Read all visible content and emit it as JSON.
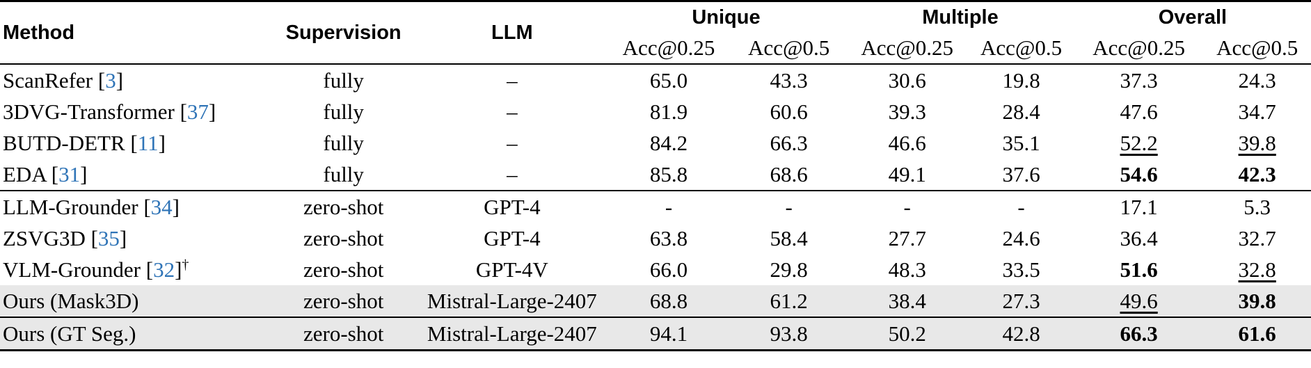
{
  "header": {
    "method": "Method",
    "supervision": "Supervision",
    "llm": "LLM",
    "groups": [
      "Unique",
      "Multiple",
      "Overall"
    ],
    "metrics": [
      "Acc@0.25",
      "Acc@0.5",
      "Acc@0.25",
      "Acc@0.5",
      "Acc@0.25",
      "Acc@0.5"
    ]
  },
  "rows": [
    {
      "name": "ScanRefer",
      "cite": "3",
      "dagger": "",
      "supervision": "fully",
      "llm": "–",
      "values": [
        "65.0",
        "43.3",
        "30.6",
        "19.8",
        "37.3",
        "24.3"
      ],
      "bold": [],
      "underline": [],
      "shade": false,
      "rule": false
    },
    {
      "name": "3DVG-Transformer",
      "cite": "37",
      "dagger": "",
      "supervision": "fully",
      "llm": "–",
      "values": [
        "81.9",
        "60.6",
        "39.3",
        "28.4",
        "47.6",
        "34.7"
      ],
      "bold": [],
      "underline": [],
      "shade": false,
      "rule": false
    },
    {
      "name": "BUTD-DETR",
      "cite": "11",
      "dagger": "",
      "supervision": "fully",
      "llm": "–",
      "values": [
        "84.2",
        "66.3",
        "46.6",
        "35.1",
        "52.2",
        "39.8"
      ],
      "bold": [],
      "underline": [
        4,
        5
      ],
      "shade": false,
      "rule": false
    },
    {
      "name": "EDA",
      "cite": "31",
      "dagger": "",
      "supervision": "fully",
      "llm": "–",
      "values": [
        "85.8",
        "68.6",
        "49.1",
        "37.6",
        "54.6",
        "42.3"
      ],
      "bold": [
        4,
        5
      ],
      "underline": [],
      "shade": false,
      "rule": false
    },
    {
      "name": "LLM-Grounder",
      "cite": "34",
      "dagger": "",
      "supervision": "zero-shot",
      "llm": "GPT-4",
      "values": [
        "-",
        "-",
        "-",
        "-",
        "17.1",
        "5.3"
      ],
      "bold": [],
      "underline": [],
      "shade": false,
      "rule": true
    },
    {
      "name": "ZSVG3D",
      "cite": "35",
      "dagger": "",
      "supervision": "zero-shot",
      "llm": "GPT-4",
      "values": [
        "63.8",
        "58.4",
        "27.7",
        "24.6",
        "36.4",
        "32.7"
      ],
      "bold": [],
      "underline": [],
      "shade": false,
      "rule": false
    },
    {
      "name": "VLM-Grounder",
      "cite": "32",
      "dagger": "†",
      "supervision": "zero-shot",
      "llm": "GPT-4V",
      "values": [
        "66.0",
        "29.8",
        "48.3",
        "33.5",
        "51.6",
        "32.8"
      ],
      "bold": [
        4
      ],
      "underline": [
        5
      ],
      "shade": false,
      "rule": false
    },
    {
      "name": "Ours (Mask3D)",
      "cite": "",
      "dagger": "",
      "supervision": "zero-shot",
      "llm": "Mistral-Large-2407",
      "values": [
        "68.8",
        "61.2",
        "38.4",
        "27.3",
        "49.6",
        "39.8"
      ],
      "bold": [
        5
      ],
      "underline": [
        4
      ],
      "shade": true,
      "rule": false
    },
    {
      "name": "Ours (GT Seg.)",
      "cite": "",
      "dagger": "",
      "supervision": "zero-shot",
      "llm": "Mistral-Large-2407",
      "values": [
        "94.1",
        "93.8",
        "50.2",
        "42.8",
        "66.3",
        "61.6"
      ],
      "bold": [
        4,
        5
      ],
      "underline": [],
      "shade": true,
      "rule": true
    }
  ]
}
